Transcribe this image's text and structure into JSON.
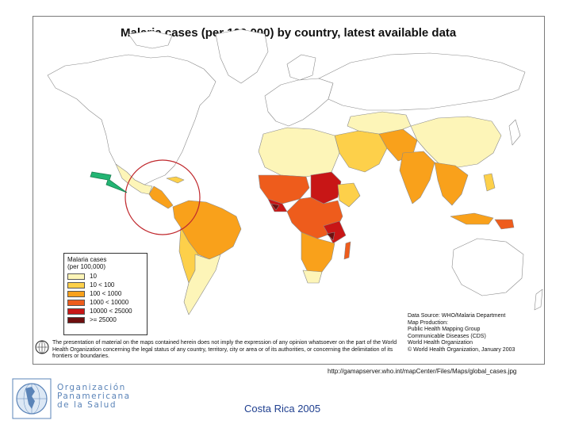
{
  "map": {
    "title": "Malaria cases (per 100,000) by country, latest available data",
    "legend": {
      "title_line1": "Malaria cases",
      "title_line2": "(per 100,000)",
      "items": [
        {
          "label": "10",
          "color": "#fdf5b8"
        },
        {
          "label": "10 < 100",
          "color": "#fdd04a"
        },
        {
          "label": "100 < 1000",
          "color": "#f9a11b"
        },
        {
          "label": "1000 < 10000",
          "color": "#ee5c1c"
        },
        {
          "label": "10000 < 25000",
          "color": "#c81616"
        },
        {
          "label": ">= 25000",
          "color": "#6e0f0f"
        }
      ]
    },
    "credits": [
      "Data Source: WHO/Malaria Department",
      "Map Production:",
      "Public Health Mapping Group",
      "Communicable Diseases (CDS)",
      "World Health Organization",
      "© World Health Organization, January 2003"
    ],
    "disclaimer": "The presentation of material on the maps contained herein does not imply the expression of any opinion whatsoever on the part of the World Health Organization concerning the legal status of any country, territory, city or area or of its authorities, or concerning the delimitation of its frontiers or boundaries.",
    "highlight_arrow_color": "#22b573",
    "highlight_circle_color": "#c0282d",
    "land_color": "#ffffff",
    "border_color": "#8a8a8a"
  },
  "source_url": "http://gamapserver.who.int/mapCenter/Files/Maps/global_cases.jpg",
  "logo": {
    "line1": "Organización",
    "line2": "Panamericana",
    "line3": "de la Salud",
    "color": "#5b84b8"
  },
  "footer_caption": "Costa Rica 2005"
}
